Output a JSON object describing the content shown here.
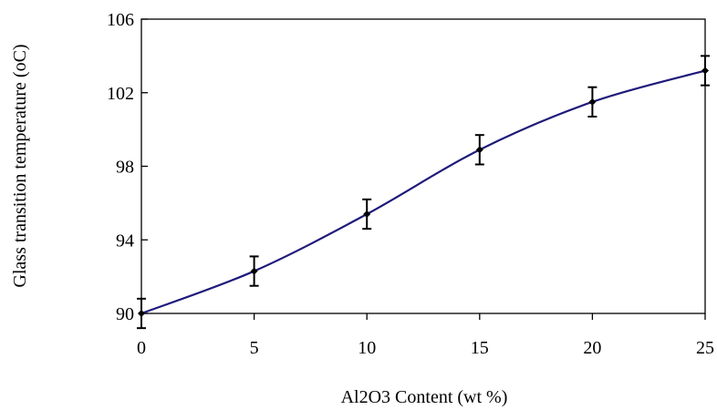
{
  "chart_data": {
    "type": "line",
    "title": "",
    "xlabel": "Al2O3 Content (wt %)",
    "ylabel": "Glass transition temperature (oC)",
    "xlim": [
      0,
      25
    ],
    "ylim": [
      90,
      106
    ],
    "xticks": [
      "0",
      "5",
      "10",
      "15",
      "20",
      "25"
    ],
    "yticks": [
      "90",
      "94",
      "98",
      "102",
      "106"
    ],
    "xtick_values": [
      0,
      5,
      10,
      15,
      20,
      25
    ],
    "ytick_values": [
      90,
      94,
      98,
      102,
      106
    ],
    "grid": false,
    "legend": "none",
    "series": [
      {
        "x": [
          0,
          5,
          10,
          15,
          20,
          25
        ],
        "y": [
          90.0,
          92.3,
          95.4,
          98.9,
          101.5,
          103.2
        ],
        "error": [
          0.8,
          0.8,
          0.8,
          0.8,
          0.8,
          0.8
        ],
        "color": "#1f1a7a",
        "marker_color": "#000000",
        "smooth": true
      }
    ]
  }
}
